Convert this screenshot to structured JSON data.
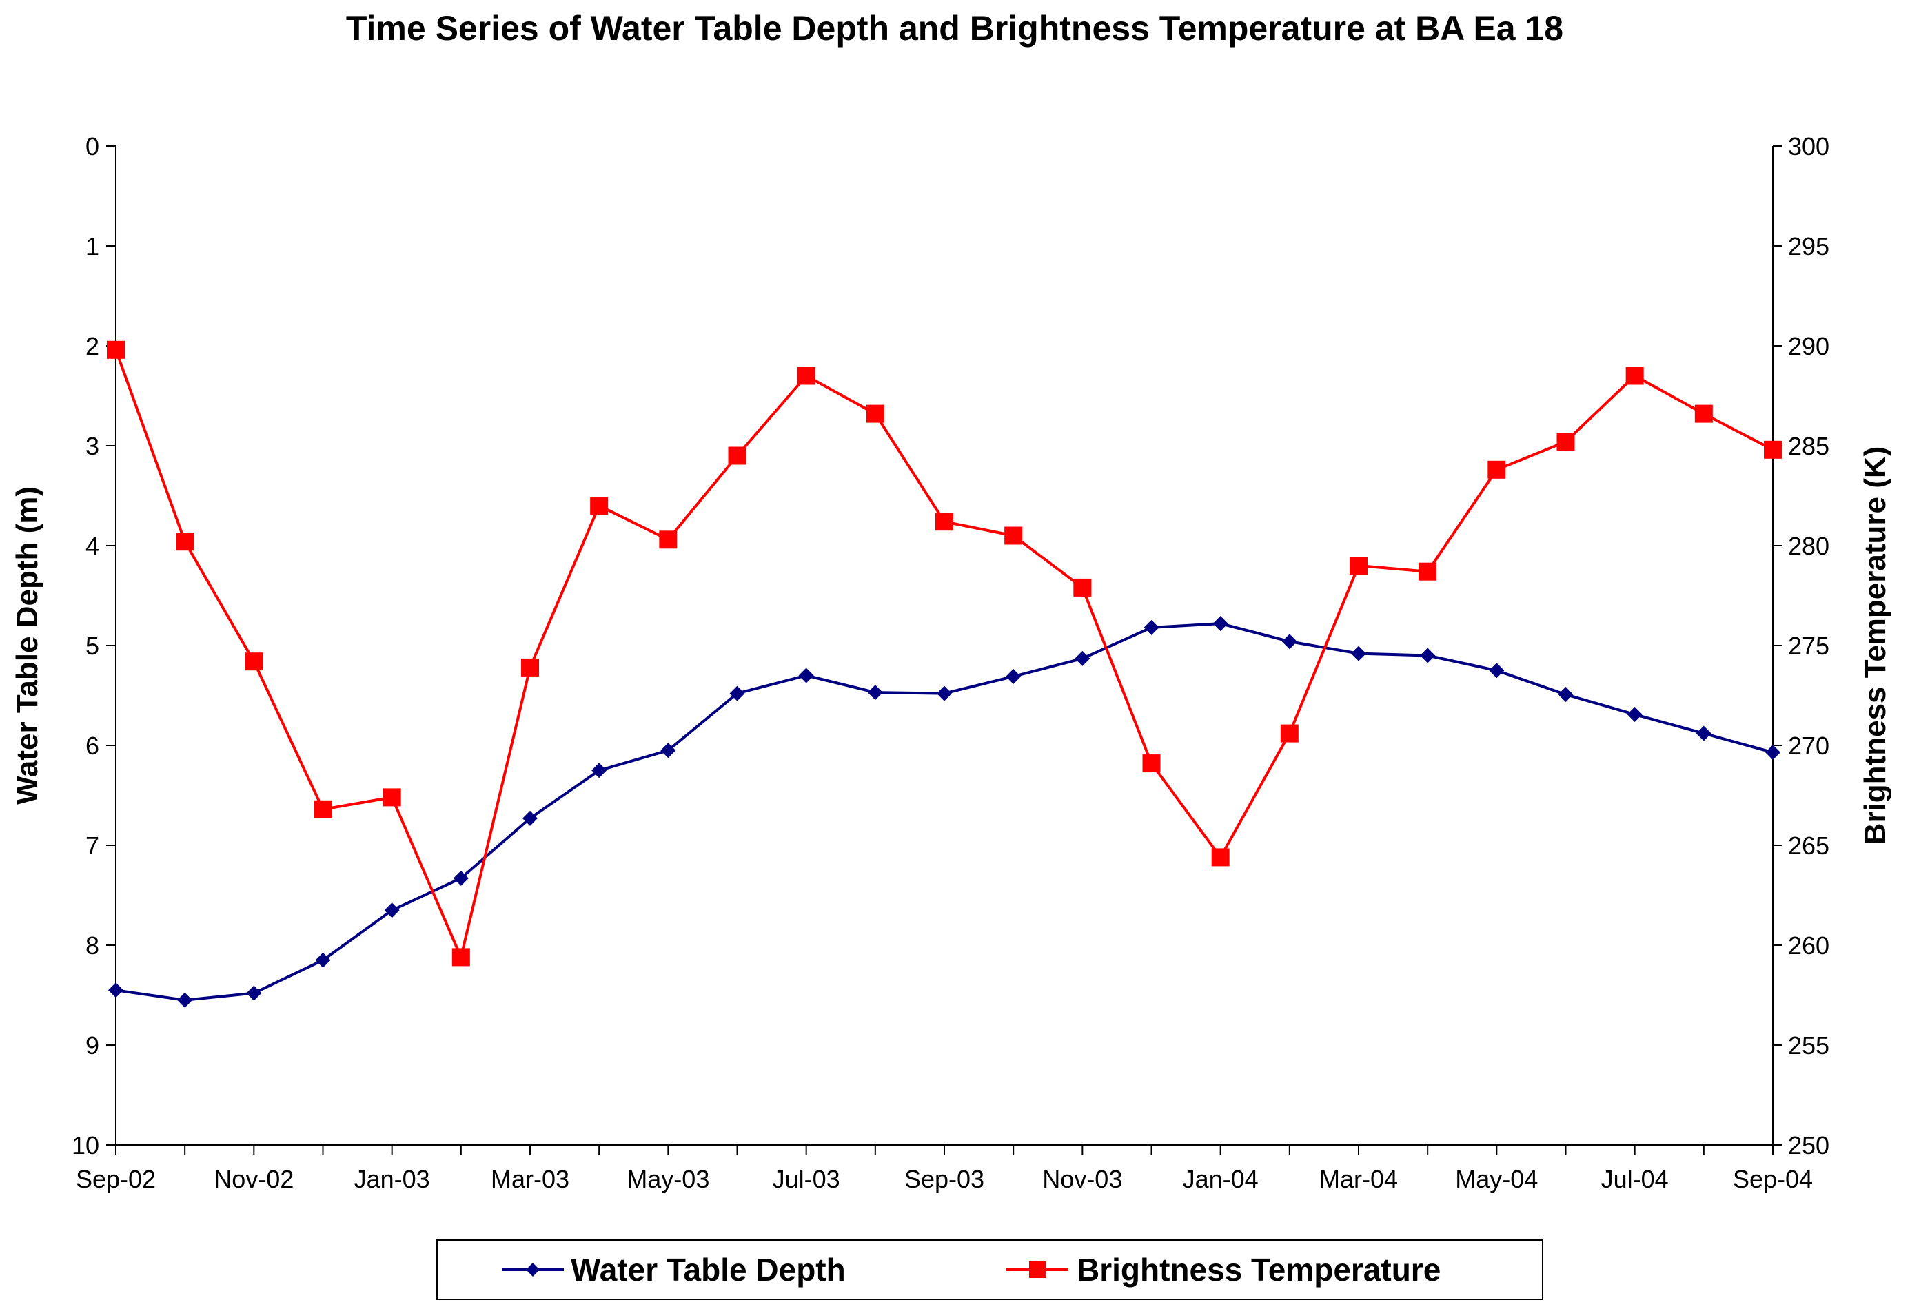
{
  "chart_data": {
    "type": "line",
    "title": "Time Series of Water Table Depth and Brightness Temperature at BA Ea 18",
    "x_tick_labels": [
      "Sep-02",
      "Nov-02",
      "Jan-03",
      "Mar-03",
      "May-03",
      "Jul-03",
      "Sep-03",
      "Nov-03",
      "Jan-04",
      "Mar-04",
      "May-04",
      "Jul-04",
      "Sep-04"
    ],
    "x": [
      "2002-09",
      "2002-10",
      "2002-11",
      "2002-12",
      "2003-01",
      "2003-02",
      "2003-03",
      "2003-04",
      "2003-05",
      "2003-06",
      "2003-07",
      "2003-08",
      "2003-09",
      "2003-10",
      "2003-11",
      "2003-12",
      "2004-01",
      "2004-02",
      "2004-03",
      "2004-04",
      "2004-05",
      "2004-06",
      "2004-07",
      "2004-08",
      "2004-09"
    ],
    "y_left": {
      "label": "Water Table Depth (m)",
      "range": [
        0,
        10
      ],
      "inverted": true,
      "ticks": [
        "0",
        "1",
        "2",
        "3",
        "4",
        "5",
        "6",
        "7",
        "8",
        "9",
        "10"
      ]
    },
    "y_right": {
      "label": "Brightness Temperature (K)",
      "range": [
        250,
        300
      ],
      "ticks": [
        "300",
        "295",
        "290",
        "285",
        "280",
        "275",
        "270",
        "265",
        "260",
        "255",
        "250"
      ]
    },
    "series": [
      {
        "name": "Water Table Depth",
        "axis": "left",
        "color": "#000080",
        "marker": "diamond",
        "values": [
          8.45,
          8.55,
          8.48,
          8.15,
          7.65,
          7.33,
          6.73,
          6.25,
          6.05,
          5.48,
          5.3,
          5.47,
          5.48,
          5.31,
          5.13,
          4.82,
          4.78,
          4.96,
          5.08,
          5.1,
          5.25,
          5.49,
          5.69,
          5.88,
          6.07
        ]
      },
      {
        "name": "Brightness Temperature",
        "axis": "right",
        "color": "#ff0000",
        "marker": "square",
        "values": [
          289.8,
          280.2,
          274.2,
          266.8,
          267.4,
          259.4,
          273.9,
          282.0,
          280.3,
          284.5,
          288.5,
          286.6,
          281.2,
          280.5,
          277.9,
          269.1,
          264.4,
          270.6,
          279.0,
          278.7,
          283.8,
          285.2,
          288.5,
          286.6,
          284.8
        ]
      }
    ],
    "grid": false,
    "legend_position": "bottom"
  }
}
